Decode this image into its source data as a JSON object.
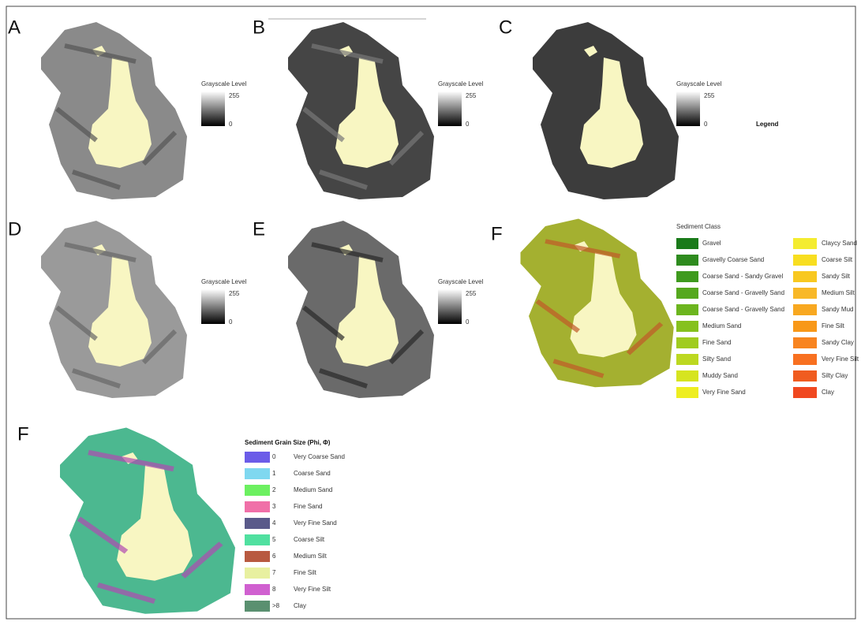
{
  "panels": [
    {
      "label": "A",
      "legend": {
        "title": "Grayscale Level",
        "max": "255",
        "min": "0"
      }
    },
    {
      "label": "B",
      "legend": {
        "title": "Grayscale Level",
        "max": "255",
        "min": "0"
      }
    },
    {
      "label": "C",
      "legend": {
        "title": "Grayscale Level",
        "max": "255",
        "min": "0"
      }
    },
    {
      "label": "D",
      "legend": {
        "title": "Grayscale Level",
        "max": "255",
        "min": "0"
      }
    },
    {
      "label": "E",
      "legend": {
        "title": "Grayscale Level",
        "max": "255",
        "min": "0"
      }
    }
  ],
  "legend_heading": "Legend",
  "sediment_class": {
    "panel_label": "F",
    "title": "Sediment Class",
    "classes": [
      {
        "name": "Gravel",
        "color": "#1a7a1a"
      },
      {
        "name": "Gravelly Coarse Sand",
        "color": "#2e8b1e"
      },
      {
        "name": "Coarse Sand - Sandy Gravel",
        "color": "#3f9a1e"
      },
      {
        "name": "Coarse Sand - Gravelly Sand",
        "color": "#55a81e"
      },
      {
        "name": "Coarse Sand - Gravelly Sand",
        "color": "#6cb51e"
      },
      {
        "name": "Medium Sand",
        "color": "#86c11e"
      },
      {
        "name": "Fine Sand",
        "color": "#a0cc20"
      },
      {
        "name": "Silty Sand",
        "color": "#bcd820"
      },
      {
        "name": "Muddy Sand",
        "color": "#d6e420"
      },
      {
        "name": "Very Fine Sand",
        "color": "#eeee20"
      },
      {
        "name": "Claycy Sand",
        "color": "#f4ec30"
      },
      {
        "name": "Coarse Silt",
        "color": "#f8de20"
      },
      {
        "name": "Sandy Silt",
        "color": "#f8c820"
      },
      {
        "name": "Medium Silt",
        "color": "#f8b828"
      },
      {
        "name": "Sandy Mud",
        "color": "#f8a820"
      },
      {
        "name": "Fine Silt",
        "color": "#f89818"
      },
      {
        "name": "Sandy Clay",
        "color": "#f88420"
      },
      {
        "name": "Very Fine Silt",
        "color": "#f87020"
      },
      {
        "name": "Silty Clay",
        "color": "#f05c20"
      },
      {
        "name": "Clay",
        "color": "#f04820"
      }
    ]
  },
  "grain_size": {
    "panel_label": "F",
    "title": "Sediment Grain Size (Phi, Φ)",
    "classes": [
      {
        "phi": "0",
        "name": "Very Coarse Sand",
        "color": "#6b5ce8"
      },
      {
        "phi": "1",
        "name": "Coarse Sand",
        "color": "#7fd8f0"
      },
      {
        "phi": "2",
        "name": "Medium Sand",
        "color": "#6cf060"
      },
      {
        "phi": "3",
        "name": "Fine Sand",
        "color": "#f070a8"
      },
      {
        "phi": "4",
        "name": "Very Fine Sand",
        "color": "#5a5a8a"
      },
      {
        "phi": "5",
        "name": "Coarse Silt",
        "color": "#50e0a0"
      },
      {
        "phi": "6",
        "name": "Medium Silt",
        "color": "#b85a40"
      },
      {
        "phi": "7",
        "name": "Fine Silt",
        "color": "#e8f0a0"
      },
      {
        "phi": "8",
        "name": "Very Fine Silt",
        "color": "#d060d0"
      },
      {
        "phi": ">8",
        "name": "Clay",
        "color": "#5a9070"
      }
    ]
  }
}
